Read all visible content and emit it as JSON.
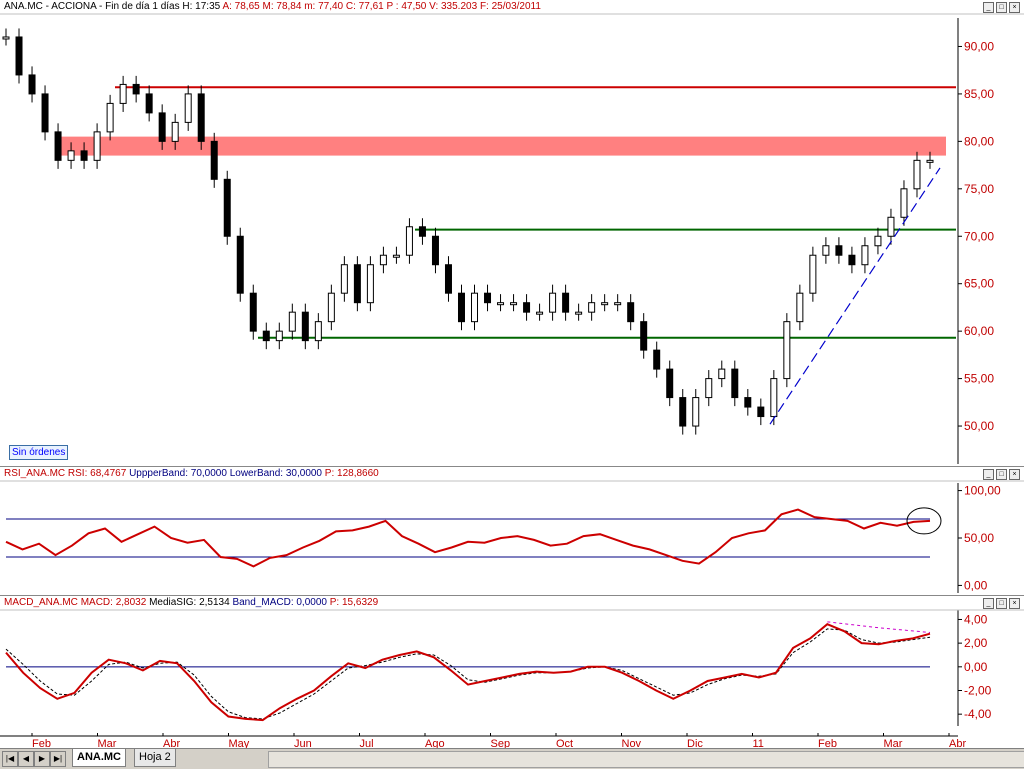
{
  "main_panel": {
    "title_parts": [
      {
        "text": "ANA.MC - ACCIONA - Fin de día 1 días",
        "color": "#000000"
      },
      {
        "text": "H: 17:35",
        "color": "#000000"
      },
      {
        "text": "A: 78,65",
        "color": "#c00000"
      },
      {
        "text": "M: 78,84",
        "color": "#c00000"
      },
      {
        "text": "m: 77,40",
        "color": "#c00000"
      },
      {
        "text": "C: 77,61",
        "color": "#c00000"
      },
      {
        "text": "P : 47,50",
        "color": "#c00000"
      },
      {
        "text": "V: 335.203",
        "color": "#c00000"
      },
      {
        "text": "F: 25/03/2011",
        "color": "#c00000"
      }
    ],
    "orders_label": "Sin órdenes"
  },
  "rsi_panel": {
    "title_parts": [
      {
        "text": "RSI_ANA.MC",
        "color": "#c00000"
      },
      {
        "text": "RSI: 68,4767",
        "color": "#c00000"
      },
      {
        "text": "UppperBand: 70,0000",
        "color": "#000080"
      },
      {
        "text": "LowerBand: 30,0000",
        "color": "#000080"
      },
      {
        "text": "P: 128,8660",
        "color": "#c00000"
      }
    ]
  },
  "macd_panel": {
    "title_parts": [
      {
        "text": "MACD_ANA.MC",
        "color": "#c00000"
      },
      {
        "text": "MACD: 2,8032",
        "color": "#c00000"
      },
      {
        "text": "MediaSIG: 2,5134",
        "color": "#000000"
      },
      {
        "text": "Band_MACD: 0,0000",
        "color": "#000080"
      },
      {
        "text": "P: 15,6329",
        "color": "#c00000"
      }
    ]
  },
  "colors": {
    "axis_text": "#c00000",
    "price": "#000000",
    "resistance": "#cc0000",
    "zone": "#ff8080",
    "support": "#006600",
    "rsi": "#cc0000",
    "band": "#000080",
    "signal": "#000000",
    "trend": "#0000cc"
  },
  "tabs": {
    "active": "ANA.MC",
    "other": "Hoja 2"
  },
  "chart_data": [
    {
      "type": "candlestick",
      "title": "ANA.MC - ACCIONA - Fin de día 1 días",
      "x_labels": [
        "Feb",
        "Mar",
        "Abr",
        "May",
        "Jun",
        "Jul",
        "Ago",
        "Sep",
        "Oct",
        "Nov",
        "Dic",
        "11",
        "Feb",
        "Mar",
        "Abr"
      ],
      "y_ticks": [
        "90,00",
        "85,00",
        "80,00",
        "75,00",
        "70,00",
        "65,00",
        "60,00",
        "55,00",
        "50,00"
      ],
      "ylim": [
        46,
        93
      ],
      "series": [
        {
          "values": [
            91,
            87,
            85,
            81,
            78,
            79,
            78,
            81,
            84,
            86,
            85,
            83,
            80,
            82,
            85,
            80,
            76,
            70,
            64,
            60,
            59,
            60,
            62,
            59,
            61,
            64,
            67,
            63,
            67,
            68,
            68,
            71,
            70,
            67,
            64,
            61,
            64,
            63,
            63,
            63,
            62,
            62,
            64,
            62,
            62,
            63,
            63,
            63,
            61,
            58,
            56,
            53,
            50,
            53,
            55,
            56,
            53,
            52,
            51,
            55,
            61,
            64,
            68,
            69,
            68,
            67,
            69,
            70,
            72,
            75,
            78,
            78
          ]
        }
      ],
      "horizontal_lines": [
        85.7,
        70.7,
        59.3
      ],
      "resistance_zone": [
        78.5,
        80.5
      ],
      "trendline": {
        "from": [
          50.2
        ],
        "to": [
          77.2
        ]
      }
    },
    {
      "type": "line",
      "title": "RSI_ANA.MC",
      "y_ticks": [
        "100,00",
        "50,00",
        "0,00"
      ],
      "ylim": [
        -8,
        108
      ],
      "bands": [
        70,
        30
      ],
      "series": [
        {
          "name": "RSI",
          "values": [
            46,
            38,
            44,
            32,
            42,
            55,
            60,
            46,
            54,
            62,
            50,
            45,
            48,
            30,
            28,
            20,
            29,
            32,
            40,
            47,
            57,
            58,
            62,
            68,
            52,
            44,
            35,
            40,
            46,
            45,
            50,
            52,
            48,
            42,
            44,
            52,
            54,
            48,
            42,
            38,
            32,
            26,
            23,
            35,
            50,
            55,
            58,
            75,
            80,
            72,
            70,
            68,
            60,
            66,
            63,
            67,
            68
          ]
        }
      ]
    },
    {
      "type": "line",
      "title": "MACD_ANA.MC",
      "y_ticks": [
        "4,00",
        "2,00",
        "0,00",
        "-2,00",
        "-4,00"
      ],
      "ylim": [
        -5,
        4.8
      ],
      "series": [
        {
          "name": "MACD",
          "values": [
            1.2,
            -0.5,
            -1.8,
            -2.7,
            -2.2,
            -0.5,
            0.6,
            0.3,
            -0.3,
            0.5,
            0.3,
            -1.2,
            -3,
            -4.2,
            -4.4,
            -4.5,
            -3.5,
            -2.7,
            -2,
            -0.8,
            0.3,
            -0.1,
            0.6,
            1,
            1.3,
            0.8,
            -0.3,
            -1.5,
            -1.2,
            -0.9,
            -0.6,
            -0.4,
            -0.5,
            -0.4,
            0,
            0,
            -0.5,
            -1.2,
            -2,
            -2.7,
            -2,
            -1.2,
            -0.9,
            -0.6,
            -0.9,
            -0.5,
            1.6,
            2.4,
            3.6,
            3,
            2,
            1.9,
            2.2,
            2.4,
            2.8
          ]
        },
        {
          "name": "MediaSIG",
          "values": [
            1.5,
            0.2,
            -1.2,
            -2.3,
            -2.4,
            -1.2,
            0.2,
            0.4,
            -0.1,
            0.3,
            0.4,
            -0.7,
            -2.5,
            -3.8,
            -4.3,
            -4.4,
            -3.9,
            -3.1,
            -2.3,
            -1.2,
            -0.1,
            0.1,
            0.4,
            0.8,
            1.1,
            1,
            0.1,
            -1.1,
            -1.3,
            -1,
            -0.7,
            -0.5,
            -0.5,
            -0.4,
            -0.1,
            0,
            -0.3,
            -1,
            -1.7,
            -2.4,
            -2.2,
            -1.5,
            -1,
            -0.7,
            -0.8,
            -0.6,
            1.2,
            2.1,
            3.2,
            3.1,
            2.3,
            2,
            2.1,
            2.3,
            2.5
          ]
        },
        {
          "values": [
            3.8,
            3.3,
            2.9
          ]
        }
      ]
    }
  ]
}
